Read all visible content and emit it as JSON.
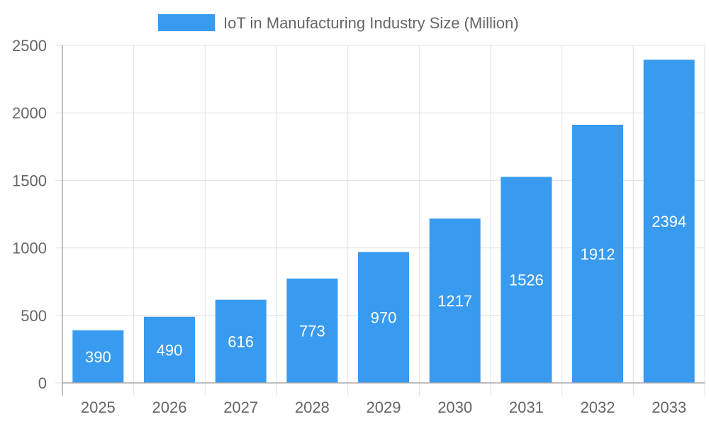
{
  "chart_data": {
    "type": "bar",
    "title": "",
    "xlabel": "",
    "ylabel": "",
    "categories": [
      "2025",
      "2026",
      "2027",
      "2028",
      "2029",
      "2030",
      "2031",
      "2032",
      "2033"
    ],
    "series": [
      {
        "name": "IoT in Manufacturing Industry Size (Million)",
        "values": [
          390,
          490,
          616,
          773,
          970,
          1217,
          1526,
          1912,
          2394
        ],
        "color": "#389bef"
      }
    ],
    "ylim": [
      0,
      2500
    ],
    "yticks": [
      0,
      500,
      1000,
      1500,
      2000,
      2500
    ],
    "grid": true,
    "legend": "top",
    "data_labels": true
  }
}
